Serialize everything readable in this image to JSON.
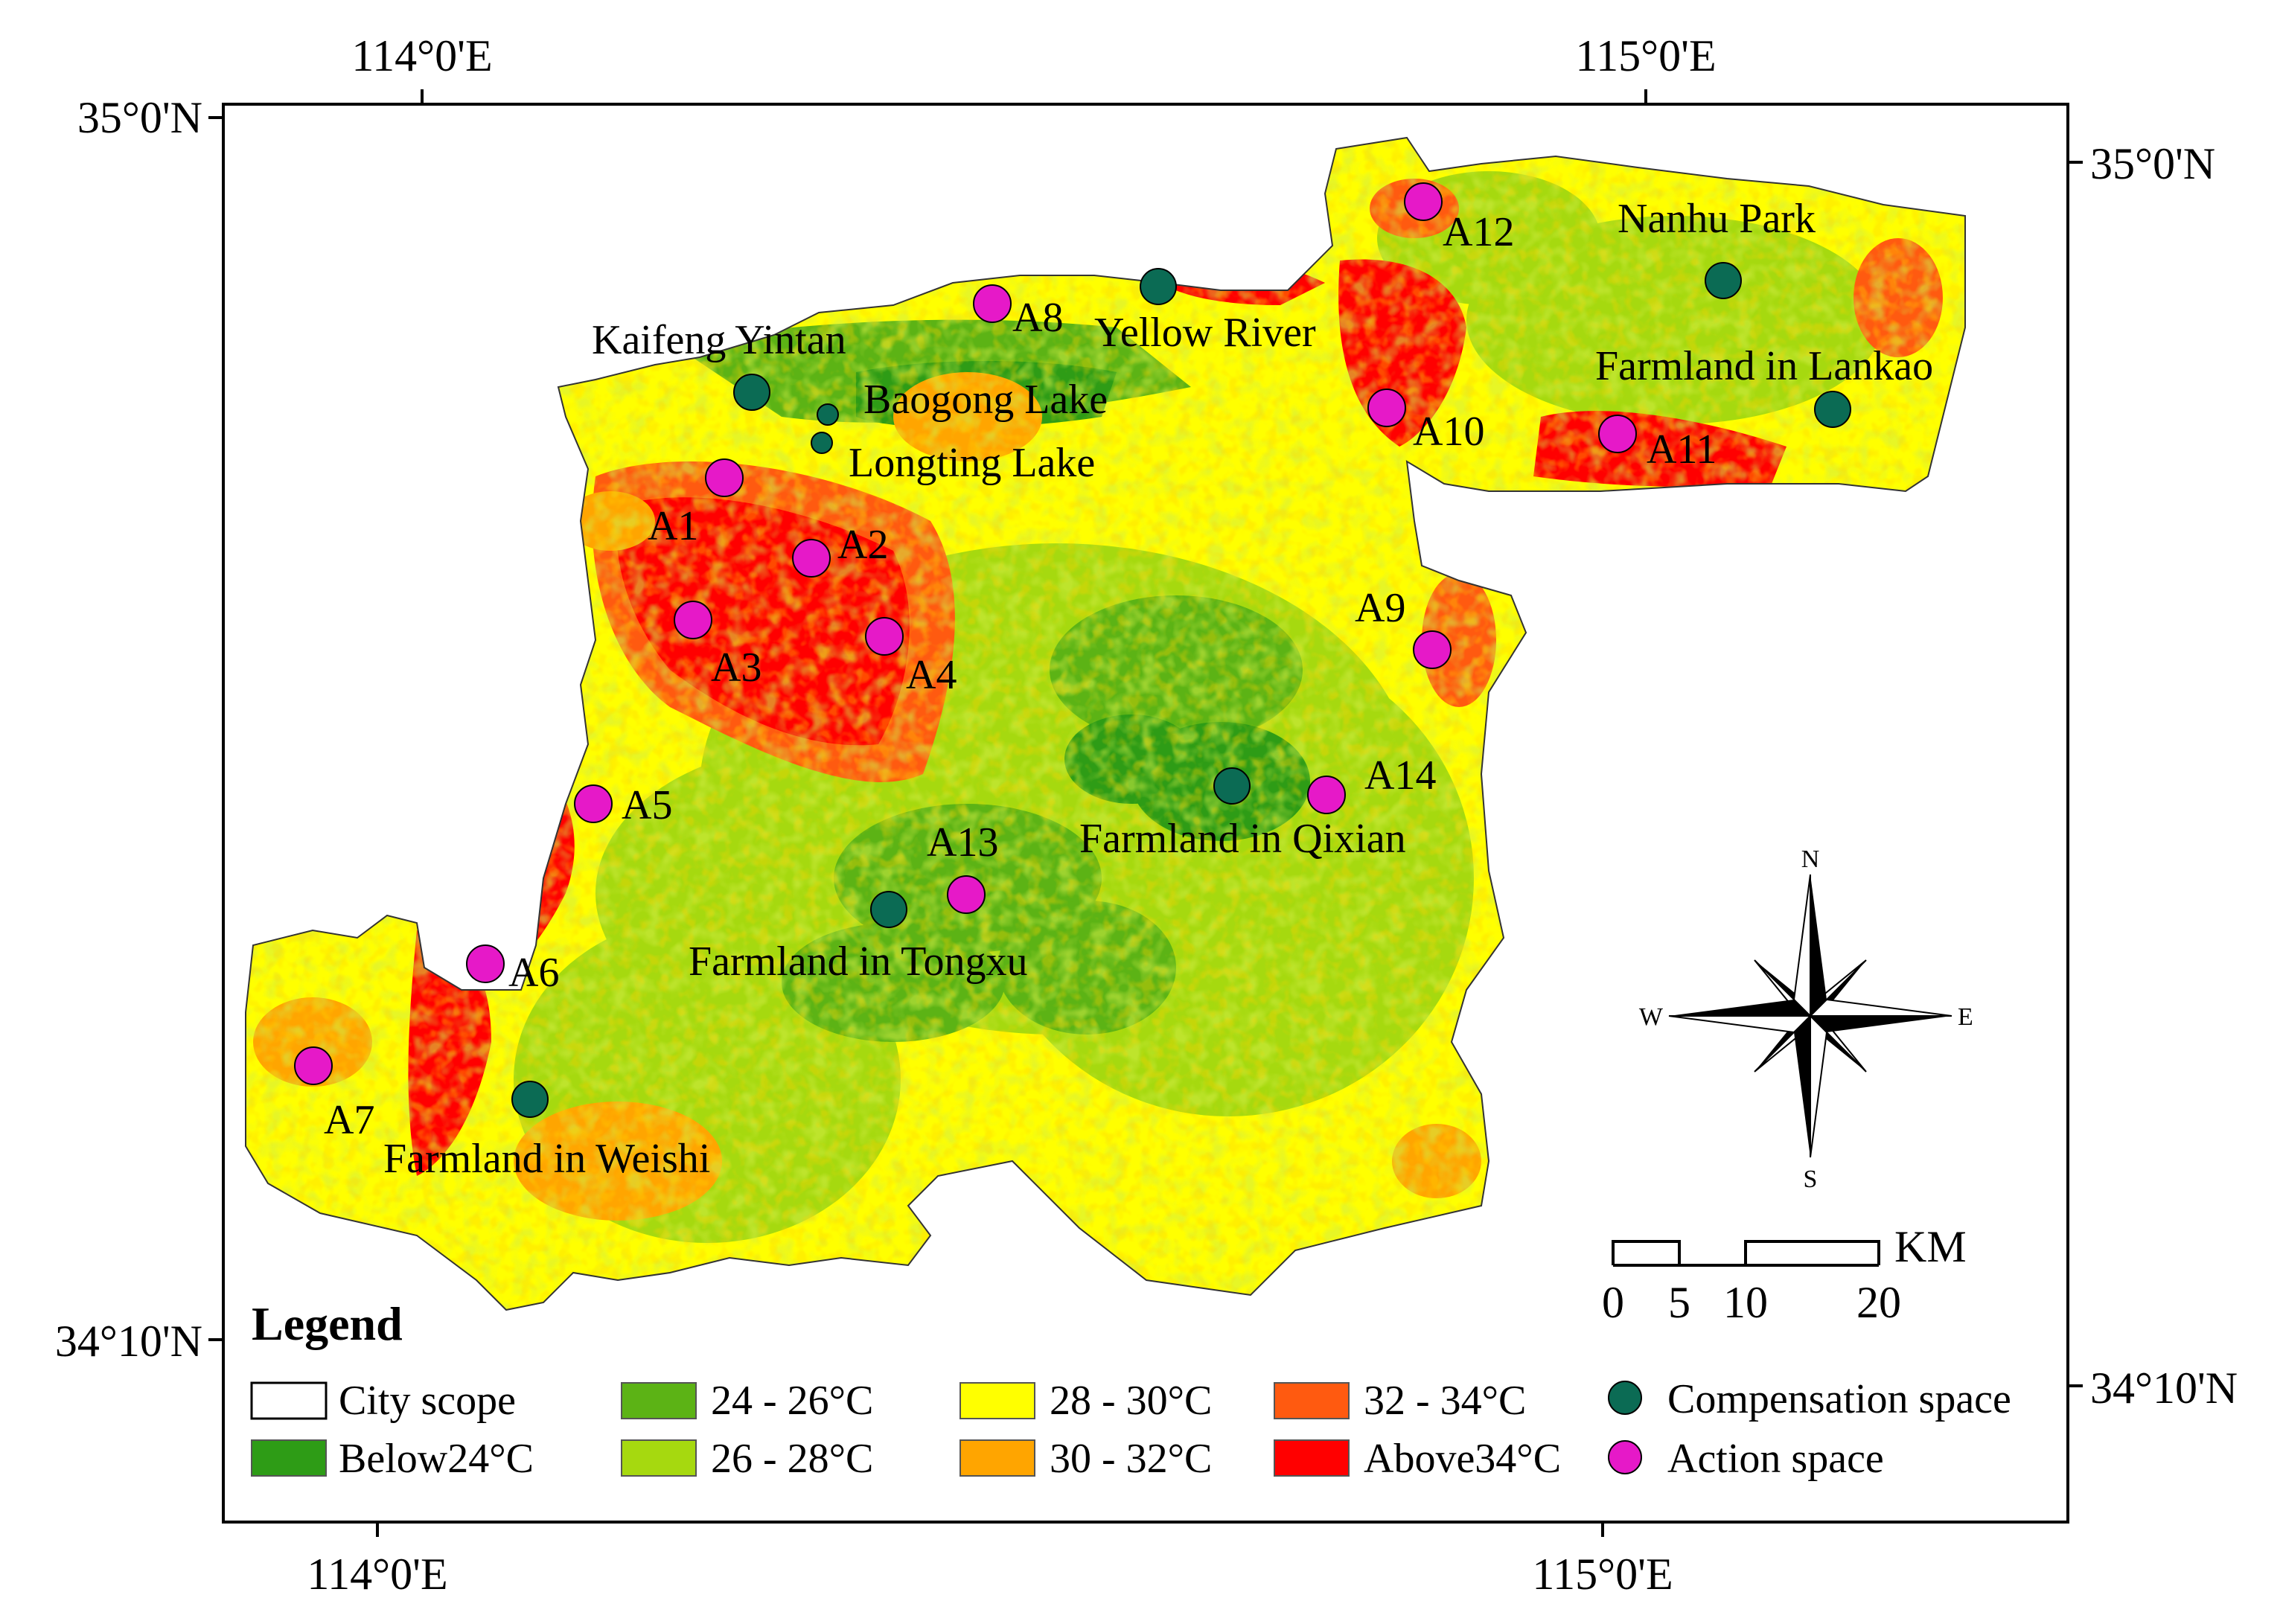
{
  "axes": {
    "top_ticks": [
      "114°0'E",
      "115°0'E"
    ],
    "bottom_ticks": [
      "114°0'E",
      "115°0'E"
    ],
    "left_ticks": [
      "35°0'N",
      "34°10'N"
    ],
    "right_ticks": [
      "35°0'N",
      "34°10'N"
    ]
  },
  "places": [
    {
      "id": "kaifeng-yintan",
      "name": "Kaifeng Yintan",
      "type": "compensation"
    },
    {
      "id": "baogong-lake",
      "name": "Baogong Lake",
      "type": "compensation"
    },
    {
      "id": "longting-lake",
      "name": "Longting Lake",
      "type": "compensation"
    },
    {
      "id": "yellow-river",
      "name": "Yellow River",
      "type": "compensation"
    },
    {
      "id": "nanhu-park",
      "name": "Nanhu Park",
      "type": "compensation"
    },
    {
      "id": "farmland-lankao",
      "name": "Farmland in Lankao",
      "type": "compensation"
    },
    {
      "id": "farmland-qixian",
      "name": "Farmland in Qixian",
      "type": "compensation"
    },
    {
      "id": "farmland-tongxu",
      "name": "Farmland in Tongxu",
      "type": "compensation"
    },
    {
      "id": "farmland-weishi",
      "name": "Farmland in Weishi",
      "type": "compensation"
    },
    {
      "id": "a1",
      "name": "A1",
      "type": "action"
    },
    {
      "id": "a2",
      "name": "A2",
      "type": "action"
    },
    {
      "id": "a3",
      "name": "A3",
      "type": "action"
    },
    {
      "id": "a4",
      "name": "A4",
      "type": "action"
    },
    {
      "id": "a5",
      "name": "A5",
      "type": "action"
    },
    {
      "id": "a6",
      "name": "A6",
      "type": "action"
    },
    {
      "id": "a7",
      "name": "A7",
      "type": "action"
    },
    {
      "id": "a8",
      "name": "A8",
      "type": "action"
    },
    {
      "id": "a9",
      "name": "A9",
      "type": "action"
    },
    {
      "id": "a10",
      "name": "A10",
      "type": "action"
    },
    {
      "id": "a11",
      "name": "A11",
      "type": "action"
    },
    {
      "id": "a12",
      "name": "A12",
      "type": "action"
    },
    {
      "id": "a13",
      "name": "A13",
      "type": "action"
    },
    {
      "id": "a14",
      "name": "A14",
      "type": "action"
    }
  ],
  "legend": {
    "title": "Legend",
    "items": [
      {
        "label": "City scope",
        "color": "#ffffff"
      },
      {
        "label": "Below24°C",
        "color": "#2e9c16"
      },
      {
        "label": "24 - 26°C",
        "color": "#5cb315"
      },
      {
        "label": "26 - 28°C",
        "color": "#a6d90f"
      },
      {
        "label": "28 - 30°C",
        "color": "#ffff00"
      },
      {
        "label": "30 - 32°C",
        "color": "#ffa500"
      },
      {
        "label": "32 - 34°C",
        "color": "#ff5a10"
      },
      {
        "label": "Above34°C",
        "color": "#ff0000"
      },
      {
        "label": "Compensation space",
        "color": "#0b6b54"
      },
      {
        "label": "Action space",
        "color": "#e619c8"
      }
    ]
  },
  "compass": {
    "n": "N",
    "s": "S",
    "e": "E",
    "w": "W"
  },
  "scalebar": {
    "unit": "KM",
    "ticks": [
      "0",
      "5",
      "10",
      "20"
    ]
  }
}
